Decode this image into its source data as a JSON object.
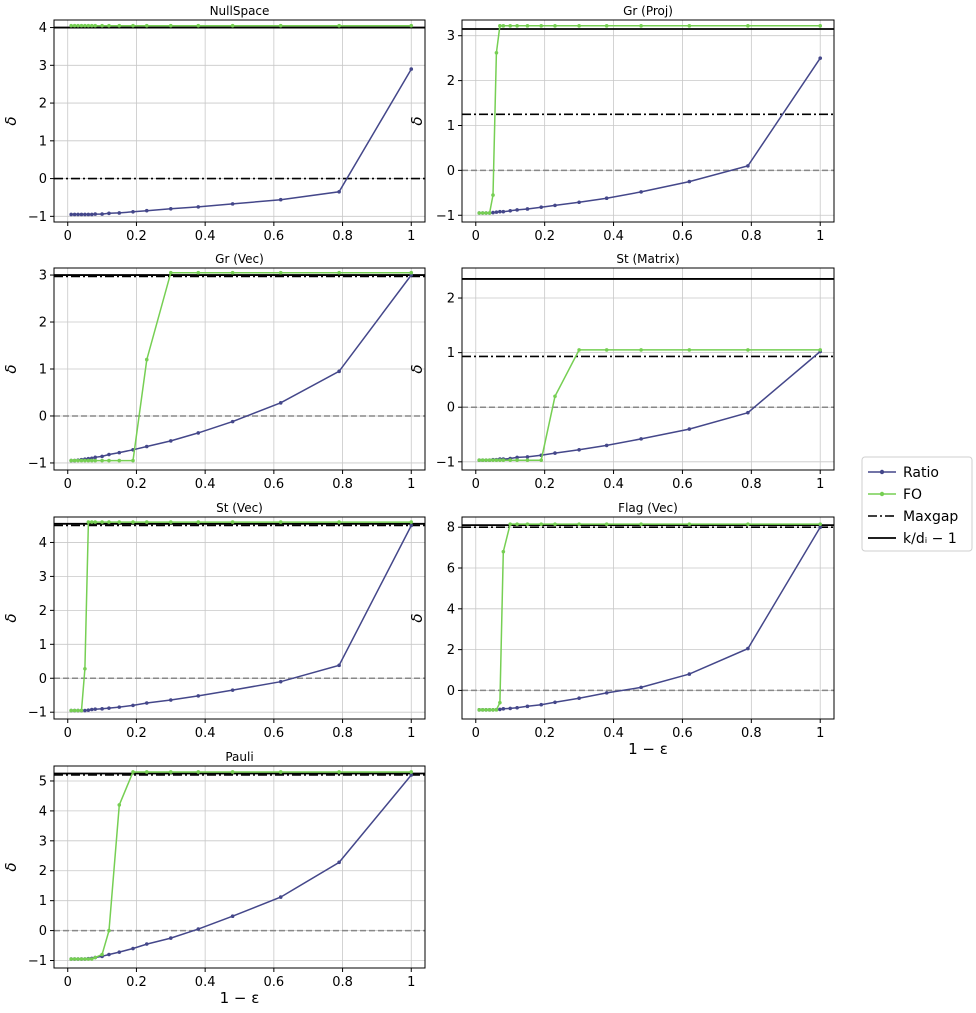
{
  "figure": {
    "ylabel": "δ",
    "xlabel": "1 − ε",
    "legend": {
      "placement": "right",
      "entries": [
        {
          "key": "ratio",
          "label": "Ratio"
        },
        {
          "key": "fo",
          "label": "FO"
        },
        {
          "key": "maxgap",
          "label": "Maxgap"
        },
        {
          "key": "kd",
          "label": "k/dᵢ − 1"
        }
      ]
    },
    "colors": {
      "ratio": "#44478a",
      "fo": "#76cf53",
      "maxgap": "#000000",
      "kd": "#000000",
      "zero": "#888888",
      "grid": "#c8c8c8"
    }
  },
  "chart_data": [
    {
      "type": "line",
      "title": "NullSpace",
      "xlim": [
        -0.04,
        1.04
      ],
      "ylim": [
        -1.15,
        4.2
      ],
      "xticks": [
        0.0,
        0.2,
        0.4,
        0.6,
        0.8,
        1.0
      ],
      "yticks": [
        -1,
        0,
        1,
        2,
        3,
        4
      ],
      "grid": true,
      "show_xlabel": false,
      "maxgap": 0.0,
      "kd": 4.0,
      "zero_line": false,
      "series": [
        {
          "name": "Ratio",
          "x": [
            0.01,
            0.02,
            0.03,
            0.04,
            0.05,
            0.06,
            0.07,
            0.08,
            0.1,
            0.12,
            0.15,
            0.19,
            0.23,
            0.3,
            0.38,
            0.48,
            0.62,
            0.79,
            1.0
          ],
          "y": [
            -0.95,
            -0.95,
            -0.95,
            -0.95,
            -0.95,
            -0.95,
            -0.95,
            -0.94,
            -0.94,
            -0.92,
            -0.91,
            -0.88,
            -0.85,
            -0.8,
            -0.75,
            -0.67,
            -0.56,
            -0.35,
            2.9
          ]
        },
        {
          "name": "FO",
          "x": [
            0.01,
            0.02,
            0.03,
            0.04,
            0.05,
            0.06,
            0.07,
            0.08,
            0.1,
            0.12,
            0.15,
            0.19,
            0.23,
            0.3,
            0.38,
            0.48,
            0.62,
            0.79,
            1.0
          ],
          "y": [
            4.05,
            4.05,
            4.05,
            4.05,
            4.05,
            4.05,
            4.05,
            4.05,
            4.05,
            4.05,
            4.05,
            4.05,
            4.05,
            4.05,
            4.05,
            4.05,
            4.05,
            4.05,
            4.05
          ]
        }
      ]
    },
    {
      "type": "line",
      "title": "Gr (Proj)",
      "xlim": [
        -0.04,
        1.04
      ],
      "ylim": [
        -1.15,
        3.35
      ],
      "xticks": [
        0.0,
        0.2,
        0.4,
        0.6,
        0.8,
        1.0
      ],
      "yticks": [
        -1,
        0,
        1,
        2,
        3
      ],
      "grid": true,
      "show_xlabel": false,
      "maxgap": 1.25,
      "kd": 3.15,
      "zero_line": true,
      "series": [
        {
          "name": "Ratio",
          "x": [
            0.01,
            0.02,
            0.03,
            0.04,
            0.05,
            0.06,
            0.07,
            0.08,
            0.1,
            0.12,
            0.15,
            0.19,
            0.23,
            0.3,
            0.38,
            0.48,
            0.62,
            0.79,
            1.0
          ],
          "y": [
            -0.95,
            -0.95,
            -0.95,
            -0.95,
            -0.94,
            -0.93,
            -0.92,
            -0.92,
            -0.9,
            -0.88,
            -0.86,
            -0.82,
            -0.78,
            -0.71,
            -0.62,
            -0.48,
            -0.25,
            0.1,
            2.5
          ]
        },
        {
          "name": "FO",
          "x": [
            0.01,
            0.02,
            0.03,
            0.04,
            0.05,
            0.06,
            0.07,
            0.08,
            0.1,
            0.12,
            0.15,
            0.19,
            0.23,
            0.3,
            0.38,
            0.48,
            0.62,
            0.79,
            1.0
          ],
          "y": [
            -0.95,
            -0.95,
            -0.95,
            -0.95,
            -0.55,
            2.62,
            3.22,
            3.22,
            3.22,
            3.22,
            3.22,
            3.22,
            3.22,
            3.22,
            3.22,
            3.22,
            3.22,
            3.22,
            3.22
          ]
        }
      ]
    },
    {
      "type": "line",
      "title": "Gr (Vec)",
      "xlim": [
        -0.04,
        1.04
      ],
      "ylim": [
        -1.15,
        3.15
      ],
      "xticks": [
        0.0,
        0.2,
        0.4,
        0.6,
        0.8,
        1.0
      ],
      "yticks": [
        -1,
        0,
        1,
        2,
        3
      ],
      "grid": true,
      "show_xlabel": false,
      "maxgap": 2.97,
      "kd": 3.0,
      "zero_line": true,
      "series": [
        {
          "name": "Ratio",
          "x": [
            0.01,
            0.02,
            0.03,
            0.04,
            0.05,
            0.06,
            0.07,
            0.08,
            0.1,
            0.12,
            0.15,
            0.19,
            0.23,
            0.3,
            0.38,
            0.48,
            0.62,
            0.79,
            1.0
          ],
          "y": [
            -0.95,
            -0.95,
            -0.94,
            -0.93,
            -0.92,
            -0.91,
            -0.9,
            -0.88,
            -0.86,
            -0.82,
            -0.78,
            -0.72,
            -0.65,
            -0.53,
            -0.36,
            -0.12,
            0.28,
            0.95,
            3.0
          ]
        },
        {
          "name": "FO",
          "x": [
            0.01,
            0.02,
            0.03,
            0.04,
            0.05,
            0.06,
            0.07,
            0.08,
            0.1,
            0.12,
            0.15,
            0.19,
            0.23,
            0.3,
            0.38,
            0.48,
            0.62,
            0.79,
            1.0
          ],
          "y": [
            -0.95,
            -0.95,
            -0.95,
            -0.95,
            -0.95,
            -0.95,
            -0.95,
            -0.95,
            -0.95,
            -0.95,
            -0.95,
            -0.95,
            1.2,
            3.05,
            3.05,
            3.05,
            3.05,
            3.05,
            3.05
          ]
        }
      ]
    },
    {
      "type": "line",
      "title": "St (Matrix)",
      "xlim": [
        -0.04,
        1.04
      ],
      "ylim": [
        -1.15,
        2.55
      ],
      "xticks": [
        0.0,
        0.2,
        0.4,
        0.6,
        0.8,
        1.0
      ],
      "yticks": [
        -1,
        0,
        1,
        2
      ],
      "grid": true,
      "show_xlabel": false,
      "maxgap": 0.93,
      "kd": 2.35,
      "zero_line": true,
      "series": [
        {
          "name": "Ratio",
          "x": [
            0.01,
            0.02,
            0.03,
            0.04,
            0.05,
            0.06,
            0.07,
            0.08,
            0.1,
            0.12,
            0.15,
            0.19,
            0.23,
            0.3,
            0.38,
            0.48,
            0.62,
            0.79,
            1.0
          ],
          "y": [
            -0.97,
            -0.97,
            -0.97,
            -0.97,
            -0.96,
            -0.96,
            -0.95,
            -0.95,
            -0.94,
            -0.92,
            -0.91,
            -0.88,
            -0.84,
            -0.78,
            -0.7,
            -0.58,
            -0.4,
            -0.1,
            1.02
          ]
        },
        {
          "name": "FO",
          "x": [
            0.01,
            0.02,
            0.03,
            0.04,
            0.05,
            0.06,
            0.07,
            0.08,
            0.1,
            0.12,
            0.15,
            0.19,
            0.23,
            0.3,
            0.38,
            0.48,
            0.62,
            0.79,
            1.0
          ],
          "y": [
            -0.97,
            -0.97,
            -0.97,
            -0.97,
            -0.97,
            -0.97,
            -0.97,
            -0.97,
            -0.97,
            -0.97,
            -0.97,
            -0.97,
            0.2,
            1.05,
            1.05,
            1.05,
            1.05,
            1.05,
            1.05
          ]
        }
      ]
    },
    {
      "type": "line",
      "title": "St (Vec)",
      "xlim": [
        -0.04,
        1.04
      ],
      "ylim": [
        -1.2,
        4.75
      ],
      "xticks": [
        0.0,
        0.2,
        0.4,
        0.6,
        0.8,
        1.0
      ],
      "yticks": [
        -1,
        0,
        1,
        2,
        3,
        4
      ],
      "grid": true,
      "show_xlabel": false,
      "maxgap": 4.5,
      "kd": 4.55,
      "zero_line": true,
      "series": [
        {
          "name": "Ratio",
          "x": [
            0.01,
            0.02,
            0.03,
            0.04,
            0.05,
            0.06,
            0.07,
            0.08,
            0.1,
            0.12,
            0.15,
            0.19,
            0.23,
            0.3,
            0.38,
            0.48,
            0.62,
            0.79,
            1.0
          ],
          "y": [
            -0.95,
            -0.95,
            -0.95,
            -0.95,
            -0.95,
            -0.94,
            -0.92,
            -0.91,
            -0.9,
            -0.88,
            -0.85,
            -0.8,
            -0.73,
            -0.64,
            -0.52,
            -0.35,
            -0.1,
            0.38,
            4.5
          ]
        },
        {
          "name": "FO",
          "x": [
            0.01,
            0.02,
            0.03,
            0.04,
            0.05,
            0.06,
            0.07,
            0.08,
            0.1,
            0.12,
            0.15,
            0.19,
            0.23,
            0.3,
            0.38,
            0.48,
            0.62,
            0.79,
            1.0
          ],
          "y": [
            -0.95,
            -0.95,
            -0.95,
            -0.95,
            0.28,
            4.6,
            4.6,
            4.6,
            4.6,
            4.6,
            4.6,
            4.6,
            4.6,
            4.6,
            4.6,
            4.6,
            4.6,
            4.6,
            4.6
          ]
        }
      ]
    },
    {
      "type": "line",
      "title": "Flag (Vec)",
      "xlim": [
        -0.04,
        1.04
      ],
      "ylim": [
        -1.4,
        8.5
      ],
      "xticks": [
        0.0,
        0.2,
        0.4,
        0.6,
        0.8,
        1.0
      ],
      "yticks": [
        0,
        2,
        4,
        6,
        8
      ],
      "grid": true,
      "show_xlabel": true,
      "maxgap": 8.0,
      "kd": 8.1,
      "zero_line": true,
      "series": [
        {
          "name": "Ratio",
          "x": [
            0.01,
            0.02,
            0.03,
            0.04,
            0.05,
            0.06,
            0.07,
            0.08,
            0.1,
            0.12,
            0.15,
            0.19,
            0.23,
            0.3,
            0.38,
            0.48,
            0.62,
            0.79,
            1.0
          ],
          "y": [
            -0.95,
            -0.95,
            -0.95,
            -0.95,
            -0.95,
            -0.94,
            -0.93,
            -0.9,
            -0.88,
            -0.85,
            -0.78,
            -0.7,
            -0.58,
            -0.38,
            -0.12,
            0.15,
            0.8,
            2.05,
            8.0
          ]
        },
        {
          "name": "FO",
          "x": [
            0.01,
            0.02,
            0.03,
            0.04,
            0.05,
            0.06,
            0.07,
            0.08,
            0.1,
            0.12,
            0.15,
            0.19,
            0.23,
            0.3,
            0.38,
            0.48,
            0.62,
            0.79,
            1.0
          ],
          "y": [
            -0.95,
            -0.95,
            -0.95,
            -0.95,
            -0.95,
            -0.95,
            -0.6,
            6.8,
            8.15,
            8.15,
            8.15,
            8.15,
            8.15,
            8.15,
            8.15,
            8.15,
            8.15,
            8.15,
            8.15
          ]
        }
      ]
    },
    {
      "type": "line",
      "title": "Pauli",
      "xlim": [
        -0.04,
        1.04
      ],
      "ylim": [
        -1.25,
        5.5
      ],
      "xticks": [
        0.0,
        0.2,
        0.4,
        0.6,
        0.8,
        1.0
      ],
      "yticks": [
        -1,
        0,
        1,
        2,
        3,
        4,
        5
      ],
      "grid": true,
      "show_xlabel": true,
      "maxgap": 5.2,
      "kd": 5.25,
      "zero_line": true,
      "series": [
        {
          "name": "Ratio",
          "x": [
            0.01,
            0.02,
            0.03,
            0.04,
            0.05,
            0.06,
            0.07,
            0.08,
            0.1,
            0.12,
            0.15,
            0.19,
            0.23,
            0.3,
            0.38,
            0.48,
            0.62,
            0.79,
            1.0
          ],
          "y": [
            -0.95,
            -0.95,
            -0.95,
            -0.95,
            -0.95,
            -0.94,
            -0.93,
            -0.9,
            -0.86,
            -0.8,
            -0.72,
            -0.6,
            -0.45,
            -0.25,
            0.05,
            0.48,
            1.12,
            2.28,
            5.2
          ]
        },
        {
          "name": "FO",
          "x": [
            0.01,
            0.02,
            0.03,
            0.04,
            0.05,
            0.06,
            0.07,
            0.08,
            0.1,
            0.12,
            0.15,
            0.19,
            0.23,
            0.3,
            0.38,
            0.48,
            0.62,
            0.79,
            1.0
          ],
          "y": [
            -0.95,
            -0.95,
            -0.95,
            -0.95,
            -0.95,
            -0.95,
            -0.95,
            -0.9,
            -0.8,
            0.0,
            4.2,
            5.3,
            5.3,
            5.3,
            5.3,
            5.3,
            5.3,
            5.3,
            5.3
          ]
        }
      ]
    }
  ]
}
